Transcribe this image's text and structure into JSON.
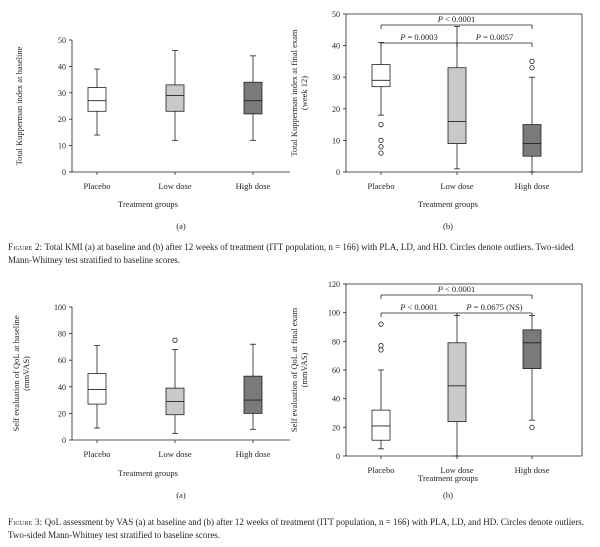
{
  "chart_data": [
    {
      "type": "boxplot",
      "panel_label": "(a)",
      "ylabel": "Total Kupperman index at baseline",
      "xlabel": "Treatment groups",
      "ylim": [
        0,
        50
      ],
      "yticks": [
        0,
        10,
        20,
        30,
        40,
        50
      ],
      "categories": [
        "Placebo",
        "Low dose",
        "High dose"
      ],
      "boxes": [
        {
          "whisker_low": 14,
          "q1": 23,
          "median": 27,
          "q3": 32,
          "whisker_high": 39,
          "outliers": [],
          "color": "#ffffff"
        },
        {
          "whisker_low": 12,
          "q1": 23,
          "median": 29,
          "q3": 33,
          "whisker_high": 46,
          "outliers": [],
          "color": "#c9c9c9"
        },
        {
          "whisker_low": 12,
          "q1": 22,
          "median": 27,
          "q3": 34,
          "whisker_high": 44,
          "outliers": [],
          "color": "#7a7a7a"
        }
      ],
      "comparisons": [],
      "frame": "left-bottom"
    },
    {
      "type": "boxplot",
      "panel_label": "(b)",
      "ylabel": "Total Kupperman index at final exam (week 12)",
      "ylabel_lines": [
        "Total Kupperman index at final exam",
        "(week 12)"
      ],
      "xlabel": "Treatment groups",
      "ylim": [
        0,
        50
      ],
      "yticks": [
        0,
        10,
        20,
        30,
        40,
        50
      ],
      "categories": [
        "Placebo",
        "Low dose",
        "High dose"
      ],
      "boxes": [
        {
          "whisker_low": 18,
          "q1": 27,
          "median": 29,
          "q3": 34,
          "whisker_high": 41,
          "outliers": [
            15,
            10,
            8,
            6
          ],
          "color": "#ffffff"
        },
        {
          "whisker_low": 1,
          "q1": 9,
          "median": 16,
          "q3": 33,
          "whisker_high": 46,
          "outliers": [],
          "color": "#c9c9c9"
        },
        {
          "whisker_low": 0,
          "q1": 5,
          "median": 9,
          "q3": 15,
          "whisker_high": 30,
          "outliers": [
            35,
            33
          ],
          "color": "#7a7a7a"
        }
      ],
      "comparisons": [
        {
          "from": 0,
          "to": 1,
          "label_prefix": "P",
          "label_rest": " = 0.0003",
          "level": 1
        },
        {
          "from": 1,
          "to": 2,
          "label_prefix": "P",
          "label_rest": " = 0.0057",
          "level": 1
        },
        {
          "from": 0,
          "to": 2,
          "label_prefix": "P",
          "label_rest": " < 0.0001",
          "level": 2
        }
      ],
      "frame": "box"
    },
    {
      "type": "boxplot",
      "panel_label": "(a)",
      "ylabel": "Self evaluation of QoL at baseline (mmVAS)",
      "ylabel_lines": [
        "Self evaluation of QoL at baseline",
        "(mmVAS)"
      ],
      "xlabel": "Treatment groups",
      "ylim": [
        0,
        100
      ],
      "yticks": [
        0,
        20,
        40,
        60,
        80,
        100
      ],
      "categories": [
        "Placebo",
        "Low dose",
        "High dose"
      ],
      "boxes": [
        {
          "whisker_low": 9,
          "q1": 27,
          "median": 38,
          "q3": 50,
          "whisker_high": 71,
          "outliers": [],
          "color": "#ffffff"
        },
        {
          "whisker_low": 5,
          "q1": 19,
          "median": 29,
          "q3": 39,
          "whisker_high": 68,
          "outliers": [
            75
          ],
          "color": "#c9c9c9"
        },
        {
          "whisker_low": 8,
          "q1": 20,
          "median": 30,
          "q3": 48,
          "whisker_high": 72,
          "outliers": [],
          "color": "#7a7a7a"
        }
      ],
      "comparisons": [],
      "frame": "left-bottom"
    },
    {
      "type": "boxplot",
      "panel_label": "(b)",
      "ylabel": "Self evaluation of QoL at final exam (mmVAS)",
      "ylabel_lines": [
        "Self evaluation of QoL at final exam",
        "(mmVAS)"
      ],
      "xlabel": "Treatment groups",
      "ylim": [
        0,
        120
      ],
      "yticks": [
        0,
        20,
        40,
        60,
        80,
        100,
        120
      ],
      "categories": [
        "Placebo",
        "Low dose",
        "High dose"
      ],
      "boxes": [
        {
          "whisker_low": 5,
          "q1": 11,
          "median": 21,
          "q3": 32,
          "whisker_high": 60,
          "outliers": [
            92,
            77,
            74
          ],
          "color": "#ffffff"
        },
        {
          "whisker_low": 0,
          "q1": 24,
          "median": 49,
          "q3": 79,
          "whisker_high": 98,
          "outliers": [],
          "color": "#c9c9c9"
        },
        {
          "whisker_low": 25,
          "q1": 61,
          "median": 79,
          "q3": 88,
          "whisker_high": 98,
          "outliers": [
            20
          ],
          "color": "#7a7a7a"
        }
      ],
      "comparisons": [
        {
          "from": 0,
          "to": 1,
          "label_prefix": "P",
          "label_rest": " < 0.0001",
          "level": 1
        },
        {
          "from": 1,
          "to": 2,
          "label_prefix": "P",
          "label_rest": " = 0.0675 (NS)",
          "level": 1
        },
        {
          "from": 0,
          "to": 2,
          "label_prefix": "P",
          "label_rest": " < 0.0001",
          "level": 2
        }
      ],
      "frame": "box"
    }
  ],
  "captions": {
    "figure2_lead": "Figure 2:",
    "figure2_text": "Total KMI (a) at baseline and (b) after 12 weeks of treatment (ITT population, n = 166) with PLA, LD, and HD. Circles denote outliers. Two-sided Mann-Whitney test stratified to baseline scores.",
    "figure3_lead": "Figure 3:",
    "figure3_text": "QoL assessment by VAS (a) at baseline and (b) after 12 weeks of treatment (ITT population, n = 166) with PLA, LD, and HD. Circles denote outliers. Two-sided Mann-Whitney test stratified to baseline scores."
  }
}
